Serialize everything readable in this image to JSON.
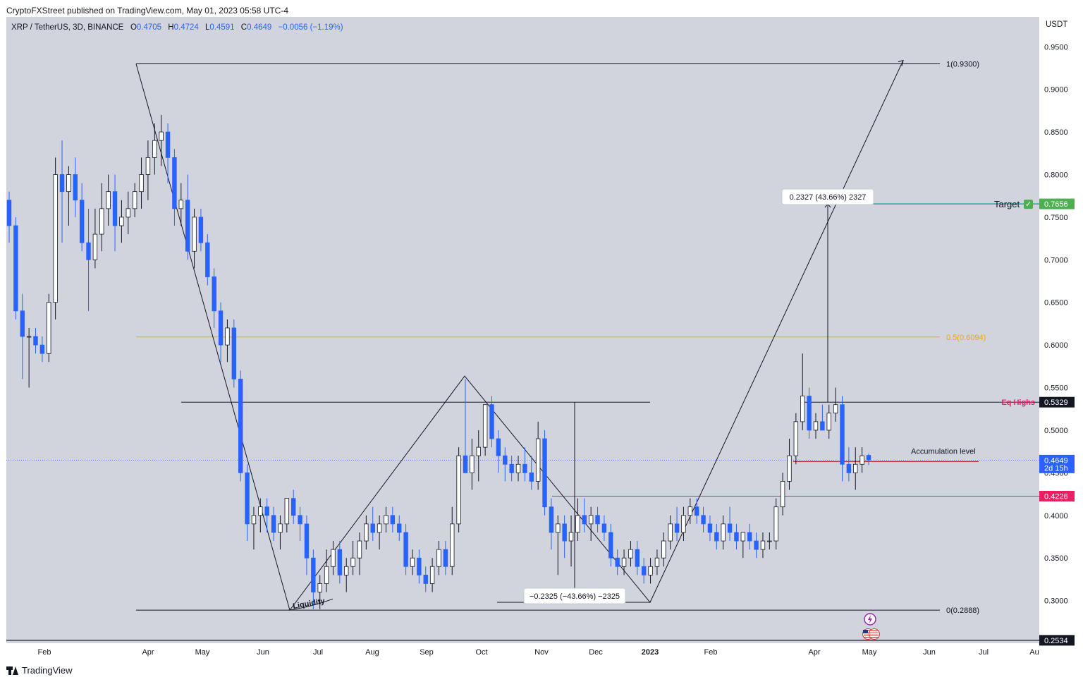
{
  "header": {
    "published": "CryptoFXStreet published on TradingView.com, May 01, 2023 05:58 UTC-4"
  },
  "symbol": {
    "name": "XRP / TetherUS, 3D, BINANCE",
    "o_label": "O",
    "o": "0.4705",
    "h_label": "H",
    "h": "0.4724",
    "l_label": "L",
    "l": "0.4591",
    "c_label": "C",
    "c": "0.4649",
    "change": "−0.0056 (−1.19%)"
  },
  "footer": {
    "brand": "TradingView"
  },
  "colors": {
    "bg": "#d1d4dc",
    "up": "#ffffff",
    "down": "#2962ff",
    "target": "#26a69a",
    "fib": "#f7a600",
    "red": "#e91e63"
  },
  "chart_data": {
    "type": "candlestick",
    "title": "",
    "currency_label": "USDT",
    "ylim": [
      0.25,
      0.985
    ],
    "y_ticks": [
      "0.9500",
      "0.9000",
      "0.8500",
      "0.8000",
      "0.7500",
      "0.7000",
      "0.6500",
      "0.6000",
      "0.5500",
      "0.5000",
      "0.4500",
      "0.4000",
      "0.3500",
      "0.3000"
    ],
    "x_ticks": [
      "Feb",
      "Apr",
      "May",
      "Jun",
      "Jul",
      "Aug",
      "Sep",
      "Oct",
      "Nov",
      "Dec",
      "2023",
      "Feb",
      "Apr",
      "May",
      "Jun",
      "Jul",
      "Au"
    ],
    "price_tags": [
      {
        "label": "0.7656",
        "value": 0.7656,
        "color": "#4caf50"
      },
      {
        "label": "0.5329",
        "value": 0.5329,
        "color": "#131722"
      },
      {
        "label": "0.4649",
        "value": 0.4649,
        "color": "#2962ff",
        "sub": "2d 15h"
      },
      {
        "label": "0.4226",
        "value": 0.4226,
        "color": "#e91e63"
      },
      {
        "label": "0.2534",
        "value": 0.2534,
        "color": "#131722"
      }
    ],
    "levels": [
      {
        "label": "1(0.9300)",
        "value": 0.93
      },
      {
        "label": "0.5(0.6094)",
        "value": 0.6094
      },
      {
        "label": "0(0.2888)",
        "value": 0.2888
      }
    ],
    "annotations": {
      "target_label": "Target",
      "target_check": "✓",
      "eq_highs": "Eq Highs",
      "accumulation": "Accumulation level",
      "liquidity": "Liquidity",
      "measure_up": "0.2327 (43.66%) 2327",
      "measure_down": "−0.2325 (−43.66%) −2325"
    },
    "candles": [
      [
        0.77,
        0.78,
        0.72,
        0.74
      ],
      [
        0.74,
        0.75,
        0.63,
        0.64
      ],
      [
        0.64,
        0.66,
        0.56,
        0.61
      ],
      [
        0.61,
        0.62,
        0.55,
        0.61
      ],
      [
        0.61,
        0.62,
        0.59,
        0.6
      ],
      [
        0.6,
        0.61,
        0.58,
        0.59
      ],
      [
        0.59,
        0.66,
        0.58,
        0.65
      ],
      [
        0.65,
        0.82,
        0.63,
        0.8
      ],
      [
        0.8,
        0.84,
        0.72,
        0.78
      ],
      [
        0.78,
        0.81,
        0.74,
        0.8
      ],
      [
        0.8,
        0.82,
        0.75,
        0.77
      ],
      [
        0.77,
        0.79,
        0.71,
        0.72
      ],
      [
        0.72,
        0.76,
        0.64,
        0.7
      ],
      [
        0.7,
        0.76,
        0.69,
        0.73
      ],
      [
        0.73,
        0.79,
        0.71,
        0.76
      ],
      [
        0.76,
        0.8,
        0.74,
        0.78
      ],
      [
        0.78,
        0.8,
        0.71,
        0.74
      ],
      [
        0.74,
        0.77,
        0.72,
        0.75
      ],
      [
        0.75,
        0.78,
        0.73,
        0.76
      ],
      [
        0.76,
        0.79,
        0.75,
        0.78
      ],
      [
        0.78,
        0.82,
        0.76,
        0.8
      ],
      [
        0.8,
        0.84,
        0.77,
        0.82
      ],
      [
        0.82,
        0.86,
        0.8,
        0.84
      ],
      [
        0.84,
        0.87,
        0.81,
        0.85
      ],
      [
        0.85,
        0.86,
        0.79,
        0.82
      ],
      [
        0.82,
        0.83,
        0.74,
        0.76
      ],
      [
        0.76,
        0.79,
        0.74,
        0.77
      ],
      [
        0.77,
        0.8,
        0.7,
        0.71
      ],
      [
        0.71,
        0.76,
        0.69,
        0.75
      ],
      [
        0.75,
        0.76,
        0.71,
        0.72
      ],
      [
        0.72,
        0.73,
        0.67,
        0.68
      ],
      [
        0.68,
        0.69,
        0.62,
        0.64
      ],
      [
        0.64,
        0.65,
        0.58,
        0.6
      ],
      [
        0.6,
        0.63,
        0.58,
        0.62
      ],
      [
        0.62,
        0.63,
        0.55,
        0.56
      ],
      [
        0.56,
        0.57,
        0.44,
        0.45
      ],
      [
        0.45,
        0.46,
        0.37,
        0.39
      ],
      [
        0.39,
        0.41,
        0.36,
        0.4
      ],
      [
        0.4,
        0.42,
        0.38,
        0.41
      ],
      [
        0.41,
        0.42,
        0.38,
        0.4
      ],
      [
        0.4,
        0.41,
        0.37,
        0.38
      ],
      [
        0.38,
        0.4,
        0.36,
        0.39
      ],
      [
        0.39,
        0.42,
        0.38,
        0.42
      ],
      [
        0.42,
        0.43,
        0.39,
        0.4
      ],
      [
        0.4,
        0.41,
        0.37,
        0.39
      ],
      [
        0.39,
        0.4,
        0.33,
        0.35
      ],
      [
        0.35,
        0.36,
        0.29,
        0.31
      ],
      [
        0.31,
        0.33,
        0.29,
        0.32
      ],
      [
        0.32,
        0.36,
        0.31,
        0.34
      ],
      [
        0.34,
        0.37,
        0.33,
        0.36
      ],
      [
        0.36,
        0.37,
        0.32,
        0.33
      ],
      [
        0.33,
        0.35,
        0.31,
        0.34
      ],
      [
        0.34,
        0.37,
        0.33,
        0.35
      ],
      [
        0.35,
        0.38,
        0.33,
        0.37
      ],
      [
        0.37,
        0.4,
        0.36,
        0.39
      ],
      [
        0.39,
        0.41,
        0.37,
        0.38
      ],
      [
        0.38,
        0.4,
        0.36,
        0.39
      ],
      [
        0.39,
        0.41,
        0.38,
        0.4
      ],
      [
        0.4,
        0.41,
        0.38,
        0.39
      ],
      [
        0.39,
        0.4,
        0.37,
        0.38
      ],
      [
        0.38,
        0.39,
        0.33,
        0.34
      ],
      [
        0.34,
        0.36,
        0.33,
        0.35
      ],
      [
        0.35,
        0.36,
        0.32,
        0.33
      ],
      [
        0.33,
        0.34,
        0.31,
        0.32
      ],
      [
        0.32,
        0.35,
        0.31,
        0.34
      ],
      [
        0.34,
        0.37,
        0.33,
        0.36
      ],
      [
        0.36,
        0.37,
        0.33,
        0.34
      ],
      [
        0.34,
        0.41,
        0.33,
        0.39
      ],
      [
        0.39,
        0.48,
        0.38,
        0.47
      ],
      [
        0.47,
        0.56,
        0.45,
        0.45
      ],
      [
        0.45,
        0.49,
        0.43,
        0.47
      ],
      [
        0.47,
        0.5,
        0.44,
        0.48
      ],
      [
        0.48,
        0.53,
        0.47,
        0.53
      ],
      [
        0.53,
        0.54,
        0.48,
        0.49
      ],
      [
        0.49,
        0.5,
        0.45,
        0.47
      ],
      [
        0.47,
        0.48,
        0.44,
        0.46
      ],
      [
        0.46,
        0.47,
        0.44,
        0.45
      ],
      [
        0.45,
        0.47,
        0.44,
        0.46
      ],
      [
        0.46,
        0.48,
        0.44,
        0.45
      ],
      [
        0.45,
        0.47,
        0.43,
        0.44
      ],
      [
        0.44,
        0.51,
        0.43,
        0.49
      ],
      [
        0.49,
        0.5,
        0.4,
        0.41
      ],
      [
        0.41,
        0.42,
        0.36,
        0.38
      ],
      [
        0.38,
        0.4,
        0.33,
        0.39
      ],
      [
        0.39,
        0.4,
        0.35,
        0.37
      ],
      [
        0.37,
        0.4,
        0.34,
        0.38
      ],
      [
        0.38,
        0.42,
        0.37,
        0.4
      ],
      [
        0.4,
        0.42,
        0.38,
        0.39
      ],
      [
        0.39,
        0.41,
        0.37,
        0.4
      ],
      [
        0.4,
        0.41,
        0.38,
        0.39
      ],
      [
        0.39,
        0.4,
        0.37,
        0.38
      ],
      [
        0.38,
        0.39,
        0.34,
        0.35
      ],
      [
        0.35,
        0.36,
        0.33,
        0.34
      ],
      [
        0.34,
        0.36,
        0.33,
        0.35
      ],
      [
        0.35,
        0.37,
        0.34,
        0.36
      ],
      [
        0.36,
        0.37,
        0.33,
        0.34
      ],
      [
        0.34,
        0.35,
        0.32,
        0.33
      ],
      [
        0.33,
        0.35,
        0.32,
        0.34
      ],
      [
        0.34,
        0.36,
        0.33,
        0.35
      ],
      [
        0.35,
        0.38,
        0.34,
        0.37
      ],
      [
        0.37,
        0.4,
        0.36,
        0.39
      ],
      [
        0.39,
        0.41,
        0.37,
        0.38
      ],
      [
        0.38,
        0.41,
        0.37,
        0.4
      ],
      [
        0.4,
        0.42,
        0.39,
        0.41
      ],
      [
        0.41,
        0.42,
        0.39,
        0.4
      ],
      [
        0.4,
        0.41,
        0.38,
        0.39
      ],
      [
        0.39,
        0.4,
        0.37,
        0.38
      ],
      [
        0.38,
        0.39,
        0.36,
        0.37
      ],
      [
        0.37,
        0.4,
        0.36,
        0.39
      ],
      [
        0.39,
        0.41,
        0.37,
        0.38
      ],
      [
        0.38,
        0.39,
        0.36,
        0.37
      ],
      [
        0.37,
        0.38,
        0.35,
        0.38
      ],
      [
        0.38,
        0.39,
        0.36,
        0.37
      ],
      [
        0.37,
        0.38,
        0.35,
        0.36
      ],
      [
        0.36,
        0.38,
        0.35,
        0.37
      ],
      [
        0.37,
        0.38,
        0.36,
        0.37
      ],
      [
        0.37,
        0.42,
        0.36,
        0.41
      ],
      [
        0.41,
        0.45,
        0.4,
        0.44
      ],
      [
        0.44,
        0.49,
        0.43,
        0.47
      ],
      [
        0.47,
        0.52,
        0.46,
        0.51
      ],
      [
        0.51,
        0.59,
        0.5,
        0.54
      ],
      [
        0.54,
        0.55,
        0.49,
        0.5
      ],
      [
        0.5,
        0.52,
        0.49,
        0.51
      ],
      [
        0.51,
        0.53,
        0.5,
        0.5
      ],
      [
        0.5,
        0.53,
        0.49,
        0.52
      ],
      [
        0.52,
        0.55,
        0.51,
        0.53
      ],
      [
        0.53,
        0.54,
        0.44,
        0.46
      ],
      [
        0.46,
        0.48,
        0.44,
        0.45
      ],
      [
        0.45,
        0.48,
        0.43,
        0.46
      ],
      [
        0.46,
        0.48,
        0.45,
        0.47
      ],
      [
        0.4705,
        0.4724,
        0.4591,
        0.4649
      ]
    ]
  }
}
